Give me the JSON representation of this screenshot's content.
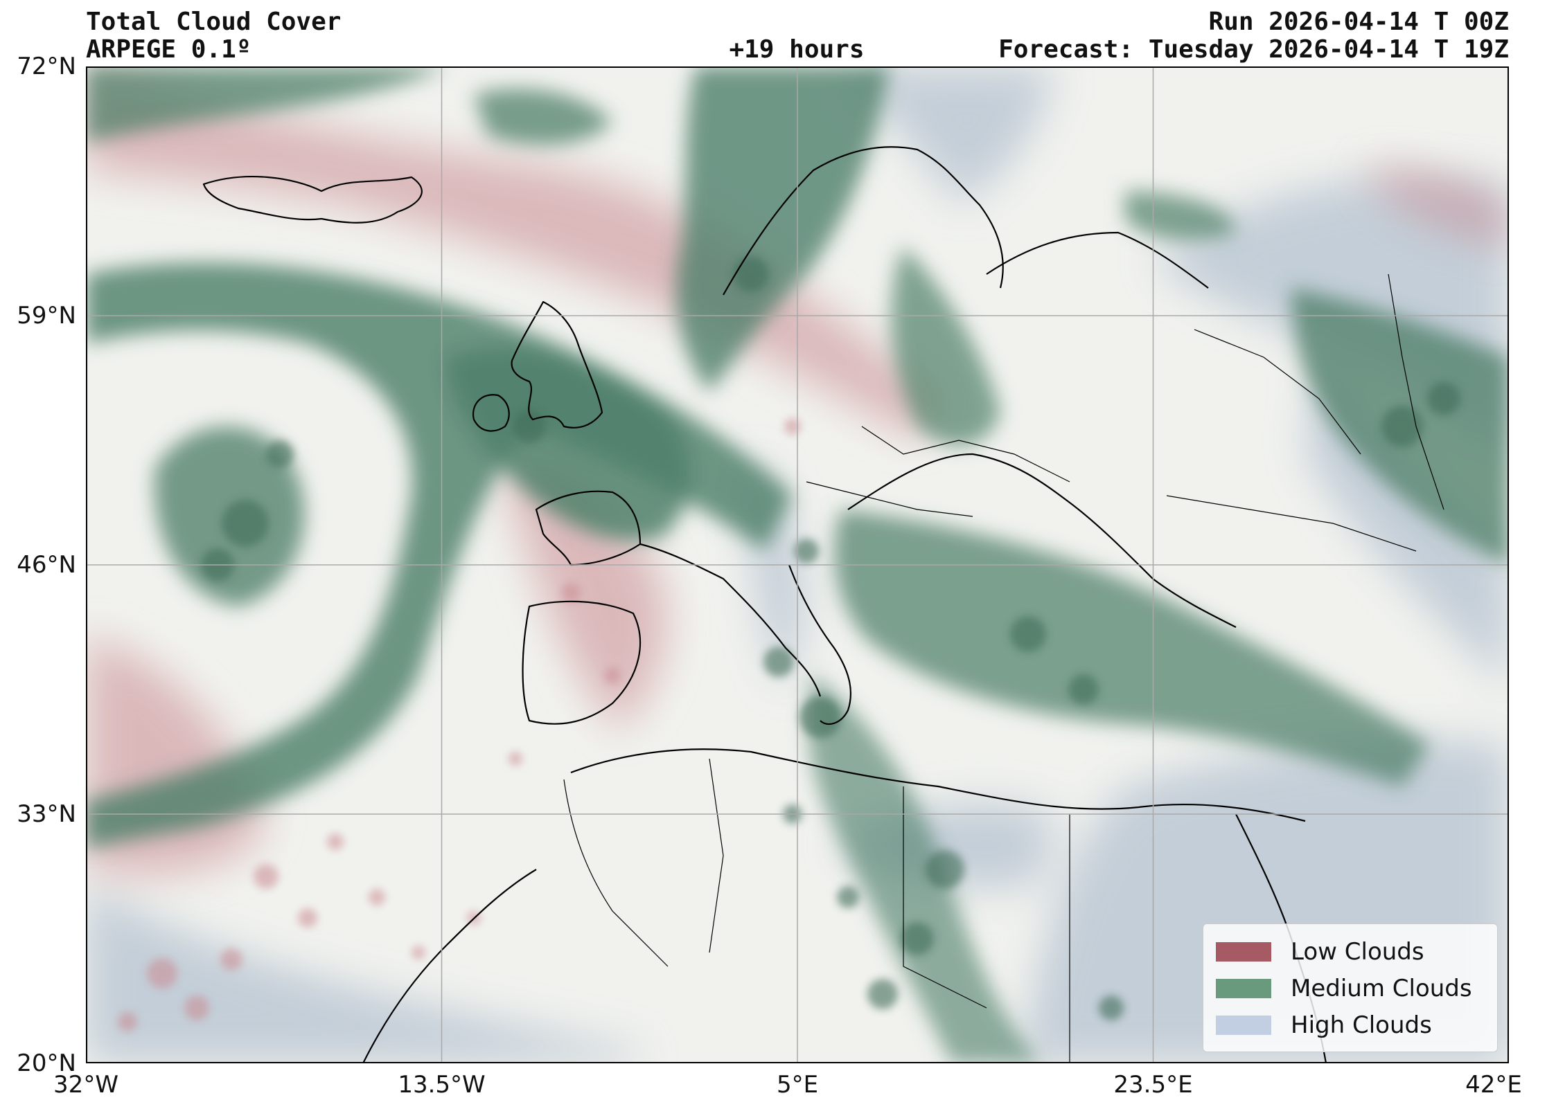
{
  "header": {
    "title": "Total Cloud Cover",
    "model": "ARPEGE 0.1º",
    "run": "Run 2026-04-14 T 00Z",
    "lead": "+19 hours",
    "valid": "Forecast: Tuesday 2026-04-14 T 19Z"
  },
  "axes": {
    "lat_labels": [
      "72°N",
      "59°N",
      "46°N",
      "33°N",
      "20°N"
    ],
    "lon_labels": [
      "32°W",
      "13.5°W",
      "5°E",
      "23.5°E",
      "42°E"
    ],
    "lat_range": [
      20,
      72
    ],
    "lon_range": [
      -32,
      42
    ],
    "grid": true
  },
  "legend": {
    "placement": "bottom-right",
    "items": [
      {
        "label": "Low Clouds",
        "color": "#a65a63"
      },
      {
        "label": "Medium Clouds",
        "color": "#6a9a7e"
      },
      {
        "label": "High Clouds",
        "color": "#c2cfe2"
      }
    ]
  },
  "colors": {
    "background": "#f1f2ee",
    "low": "#c98a91",
    "medium": "#4f806a",
    "high": "#b7c4d2",
    "coast": "#000000",
    "grid": "#a9a9a9"
  }
}
